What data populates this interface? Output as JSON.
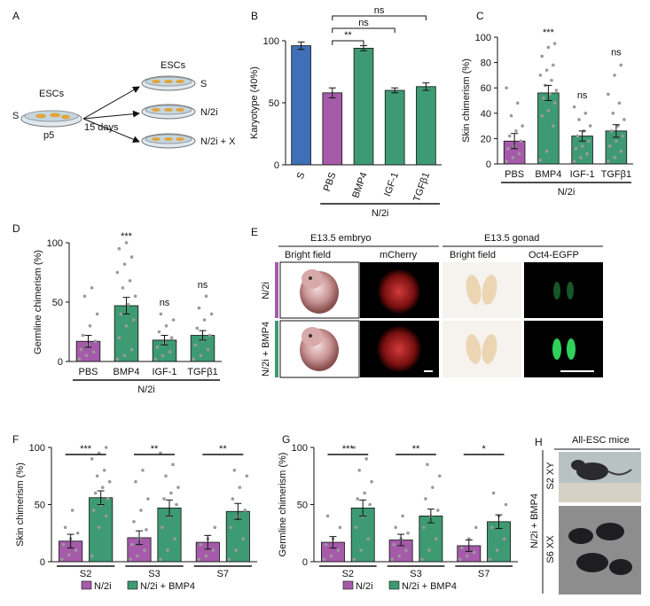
{
  "colors": {
    "purple": "#A55BAA",
    "green": "#3E9A72",
    "blue": "#3F6FB6",
    "dot": "#9A9A9A",
    "axis": "#111111"
  },
  "panelA": {
    "letter": "A",
    "left_label": "ESCs",
    "left_S": "S",
    "passage": "p5",
    "arrow_label": "15 days",
    "right_title": "ESCs",
    "outcomes": [
      "S",
      "N/2i",
      "N/2i + X"
    ]
  },
  "panelE": {
    "letter": "E",
    "embryo_header": "E13.5 embryo",
    "gonad_header": "E13.5 gonad",
    "columns": [
      "Bright field",
      "mCherry",
      "Bright field",
      "Oct4-EGFP"
    ],
    "rows": [
      "N/2i",
      "N/2i + BMP4"
    ]
  },
  "panelH": {
    "letter": "H",
    "title": "All-ESC mice",
    "group_label": "N/2i + BMP4",
    "rows": [
      "S2 XY",
      "S6 XX"
    ]
  },
  "chart_data": [
    {
      "id": "B",
      "letter": "B",
      "type": "bar",
      "ylabel": "Karyotype (40%)",
      "ylim": [
        0,
        100
      ],
      "yticks": [
        0,
        50,
        100
      ],
      "categories": [
        "S",
        "PBS",
        "BMP4",
        "IGF-1",
        "TGFβ1"
      ],
      "values": [
        96,
        58,
        94,
        60,
        63
      ],
      "errors": [
        3,
        4,
        2,
        2,
        3
      ],
      "bar_colors": [
        "blue",
        "purple",
        "green",
        "green",
        "green"
      ],
      "group_label": "N/2i",
      "significance": [
        {
          "from": 1,
          "to": 2,
          "label": "**"
        },
        {
          "from": 1,
          "to": 3,
          "label": "ns"
        },
        {
          "from": 1,
          "to": 4,
          "label": "ns"
        }
      ]
    },
    {
      "id": "C",
      "letter": "C",
      "type": "bar",
      "ylabel": "Skin chimerism (%)",
      "ylim": [
        0,
        100
      ],
      "yticks": [
        0,
        20,
        40,
        60,
        80,
        100
      ],
      "categories": [
        "PBS",
        "BMP4",
        "IGF-1",
        "TGFβ1"
      ],
      "values": [
        18,
        56,
        22,
        26
      ],
      "errors": [
        6,
        6,
        4,
        5
      ],
      "bar_colors": [
        "purple",
        "green",
        "green",
        "green"
      ],
      "group_label": "N/2i",
      "marks": [
        "",
        "***",
        "ns",
        "ns"
      ],
      "points": [
        [
          2,
          5,
          8,
          12,
          14,
          18,
          22,
          26,
          30,
          38,
          48,
          60
        ],
        [
          3,
          10,
          30,
          38,
          42,
          48,
          52,
          55,
          58,
          62,
          66,
          70,
          74,
          78,
          85,
          92,
          95
        ],
        [
          2,
          5,
          8,
          12,
          14,
          18,
          22,
          26,
          30,
          35,
          40,
          45
        ],
        [
          2,
          5,
          10,
          14,
          18,
          22,
          26,
          30,
          35,
          40,
          48,
          55,
          70,
          78
        ]
      ]
    },
    {
      "id": "D",
      "letter": "D",
      "type": "bar",
      "ylabel": "Germline chimerism (%)",
      "ylim": [
        0,
        100
      ],
      "yticks": [
        0,
        50,
        100
      ],
      "categories": [
        "PBS",
        "BMP4",
        "IGF-1",
        "TGFβ1"
      ],
      "values": [
        17,
        47,
        18,
        22
      ],
      "errors": [
        5,
        7,
        4,
        4
      ],
      "bar_colors": [
        "purple",
        "green",
        "green",
        "green"
      ],
      "group_label": "N/2i",
      "marks": [
        "",
        "***",
        "ns",
        "ns"
      ],
      "points": [
        [
          2,
          5,
          8,
          10,
          14,
          17,
          22,
          30,
          40,
          55,
          62
        ],
        [
          2,
          5,
          10,
          20,
          30,
          35,
          40,
          48,
          55,
          62,
          68,
          75,
          82,
          88,
          95,
          100
        ],
        [
          2,
          5,
          8,
          12,
          15,
          20,
          25,
          30,
          35,
          40
        ],
        [
          2,
          5,
          10,
          14,
          18,
          22,
          28,
          35,
          40,
          45,
          55
        ]
      ]
    },
    {
      "id": "F",
      "letter": "F",
      "type": "grouped-bar",
      "ylabel": "Skin chimerism (%)",
      "ylim": [
        0,
        100
      ],
      "yticks": [
        0,
        50,
        100
      ],
      "categories": [
        "S2",
        "S3",
        "S7"
      ],
      "series": [
        {
          "name": "N/2i",
          "values": [
            18,
            21,
            17
          ],
          "errors": [
            6,
            6,
            6
          ],
          "points": [
            [
              2,
              6,
              10,
              15,
              20,
              25,
              30,
              45
            ],
            [
              2,
              5,
              10,
              15,
              20,
              28,
              35,
              45,
              55,
              70,
              80
            ],
            [
              2,
              5,
              10,
              15,
              20,
              30
            ]
          ]
        },
        {
          "name": "N/2i + BMP4",
          "values": [
            56,
            47,
            44
          ],
          "errors": [
            6,
            7,
            7
          ],
          "points": [
            [
              5,
              30,
              40,
              45,
              50,
              55,
              60,
              65,
              70,
              75,
              80,
              90,
              95,
              100
            ],
            [
              2,
              10,
              20,
              30,
              40,
              50,
              55,
              60,
              65,
              75,
              85,
              95
            ],
            [
              2,
              10,
              20,
              30,
              40,
              45,
              55,
              65,
              75,
              80
            ]
          ]
        }
      ],
      "marks": [
        "***",
        "**",
        "**"
      ],
      "legend": [
        "N/2i",
        "N/2i + BMP4"
      ]
    },
    {
      "id": "G",
      "letter": "G",
      "type": "grouped-bar",
      "ylabel": "Germline chimerism (%)",
      "ylim": [
        0,
        100
      ],
      "yticks": [
        0,
        50,
        100
      ],
      "categories": [
        "S2",
        "S3",
        "S7"
      ],
      "series": [
        {
          "name": "N/2i",
          "values": [
            17,
            19,
            14
          ],
          "errors": [
            5,
            5,
            5
          ],
          "points": [
            [
              2,
              5,
              10,
              15,
              20,
              30,
              40
            ],
            [
              2,
              5,
              10,
              15,
              20,
              25,
              30,
              40
            ],
            [
              2,
              5,
              8,
              12,
              20,
              30
            ]
          ]
        },
        {
          "name": "N/2i + BMP4",
          "values": [
            47,
            40,
            35
          ],
          "errors": [
            7,
            6,
            6
          ],
          "points": [
            [
              2,
              10,
              20,
              30,
              40,
              50,
              55,
              60,
              70,
              80,
              90,
              100
            ],
            [
              2,
              10,
              20,
              30,
              40,
              45,
              55,
              65,
              75,
              85
            ],
            [
              2,
              10,
              20,
              30,
              40,
              50,
              60
            ]
          ]
        }
      ],
      "marks": [
        "***",
        "**",
        "*"
      ],
      "legend": [
        "N/2i",
        "N/2i + BMP4"
      ]
    }
  ]
}
